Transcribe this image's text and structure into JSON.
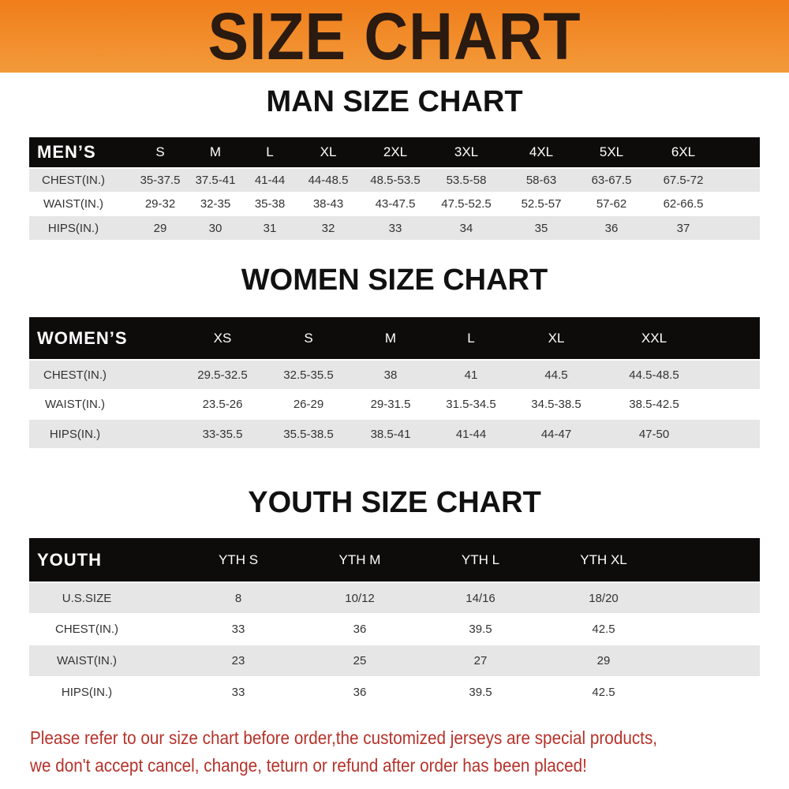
{
  "banner": {
    "title": "SIZE CHART",
    "color": "#f07d1a"
  },
  "men": {
    "title": "MAN SIZE CHART",
    "header": [
      "MEN’S",
      "S",
      "M",
      "L",
      "XL",
      "2XL",
      "3XL",
      "4XL",
      "5XL",
      "6XL"
    ],
    "rows": [
      [
        "CHEST(IN.)",
        "35-37.5",
        "37.5-41",
        "41-44",
        "44-48.5",
        "48.5-53.5",
        "53.5-58",
        "58-63",
        "63-67.5",
        "67.5-72"
      ],
      [
        "WAIST(IN.)",
        "29-32",
        "32-35",
        "35-38",
        "38-43",
        "43-47.5",
        "47.5-52.5",
        "52.5-57",
        "57-62",
        "62-66.5"
      ],
      [
        "HIPS(IN.)",
        "29",
        "30",
        "31",
        "32",
        "33",
        "34",
        "35",
        "36",
        "37"
      ]
    ]
  },
  "women": {
    "title": "WOMEN SIZE CHART",
    "header": [
      "WOMEN’S",
      "XS",
      "S",
      "M",
      "L",
      "XL",
      "XXL"
    ],
    "rows": [
      [
        "CHEST(IN.)",
        "29.5-32.5",
        "32.5-35.5",
        "38",
        "41",
        "44.5",
        "44.5-48.5"
      ],
      [
        "WAIST(IN.)",
        "23.5-26",
        "26-29",
        "29-31.5",
        "31.5-34.5",
        "34.5-38.5",
        "38.5-42.5"
      ],
      [
        "HIPS(IN.)",
        "33-35.5",
        "35.5-38.5",
        "38.5-41",
        "41-44",
        "44-47",
        "47-50"
      ]
    ]
  },
  "youth": {
    "title": "YOUTH SIZE CHART",
    "header": [
      "YOUTH",
      "YTH S",
      "YTH M",
      "YTH L",
      "YTH XL"
    ],
    "rows": [
      [
        "U.S.SIZE",
        "8",
        "10/12",
        "14/16",
        "18/20"
      ],
      [
        "CHEST(IN.)",
        "33",
        "36",
        "39.5",
        "42.5"
      ],
      [
        "WAIST(IN.)",
        "23",
        "25",
        "27",
        "29"
      ],
      [
        "HIPS(IN.)",
        "33",
        "36",
        "39.5",
        "42.5"
      ]
    ]
  },
  "notice": {
    "line1": "Please refer to our size chart before order,the customized jerseys are special products,",
    "line2": "we don't accept cancel, change, teturn or refund after order has been placed!",
    "color": "#b5322a"
  }
}
